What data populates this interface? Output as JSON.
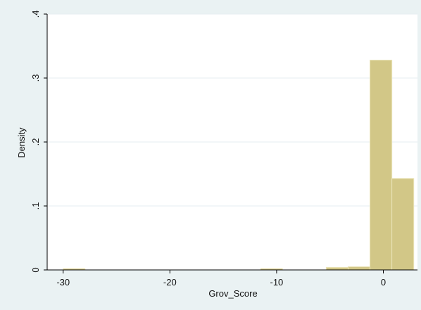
{
  "chart_data": {
    "type": "bar",
    "subtype": "histogram",
    "xlabel": "Grov_Score",
    "ylabel": "Density",
    "xlim": [
      -31.5,
      3.2
    ],
    "ylim": [
      0,
      0.4
    ],
    "x_ticks": [
      -30,
      -20,
      -10,
      0
    ],
    "x_tick_labels": [
      "-30",
      "-20",
      "-10",
      "0"
    ],
    "y_ticks": [
      0,
      0.1,
      0.2,
      0.3,
      0.4
    ],
    "y_tick_labels": [
      "0",
      ".1",
      ".2",
      ".3",
      ".4"
    ],
    "grid": true,
    "legend": "none",
    "bin_width": 2.05,
    "bins": [
      {
        "x0": -30.0,
        "x1": -27.95,
        "density": 0.002
      },
      {
        "x0": -11.5,
        "x1": -9.45,
        "density": 0.002
      },
      {
        "x0": -5.35,
        "x1": -3.3,
        "density": 0.004
      },
      {
        "x0": -3.3,
        "x1": -1.25,
        "density": 0.005
      },
      {
        "x0": -1.25,
        "x1": 0.8,
        "density": 0.328
      },
      {
        "x0": 0.8,
        "x1": 2.85,
        "density": 0.143
      }
    ],
    "bar_fill": "#d2c787",
    "bar_stroke": "#ebe4b8"
  },
  "colors": {
    "outer_background": "#eaf2f3",
    "plot_background": "#ffffff",
    "gridline": "#e6eef0",
    "axis": "#000000"
  }
}
